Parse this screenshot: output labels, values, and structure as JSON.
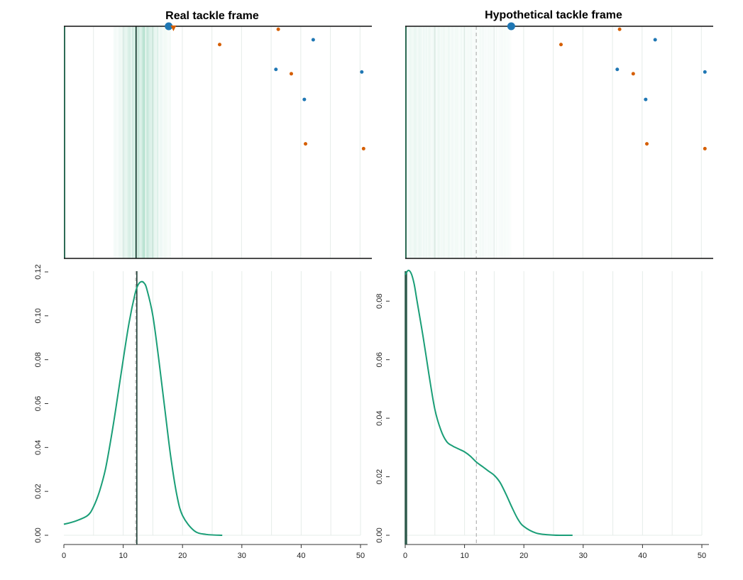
{
  "chart_data": [
    {
      "type": "scatter",
      "title": "Real tackle frame",
      "xlim": [
        0,
        52
      ],
      "ylim": [
        0,
        53.3
      ],
      "grid": true,
      "line_marker_x": 12.2,
      "band_range": [
        8.5,
        18
      ],
      "band_core": [
        11,
        15
      ],
      "ball_carrier": {
        "x": 17.7,
        "y": 53.3,
        "color": "#1f77b4"
      },
      "tackler": {
        "x": 18.5,
        "y": 53.0,
        "color": "#d55e00"
      },
      "series": [
        {
          "name": "",
          "color": "#1f77b4",
          "points": [
            [
              42.1,
              50.2
            ],
            [
              35.8,
              43.4
            ],
            [
              40.6,
              36.5
            ],
            [
              50.3,
              42.8
            ]
          ]
        },
        {
          "name": "",
          "color": "#d55e00",
          "points": [
            [
              36.2,
              52.6
            ],
            [
              26.3,
              49.1
            ],
            [
              38.4,
              42.4
            ],
            [
              40.8,
              26.3
            ],
            [
              50.6,
              25.2
            ]
          ]
        }
      ]
    },
    {
      "type": "scatter",
      "title": "Hypothetical tackle frame",
      "xlim": [
        0,
        52
      ],
      "ylim": [
        0,
        53.3
      ],
      "grid": true,
      "line_marker_x": 12.0,
      "band_range": [
        0,
        18
      ],
      "ball_carrier": {
        "x": 17.9,
        "y": 53.3,
        "color": "#1f77b4"
      },
      "series": [
        {
          "name": "",
          "color": "#1f77b4",
          "points": [
            [
              42.2,
              50.2
            ],
            [
              35.8,
              43.4
            ],
            [
              40.6,
              36.5
            ],
            [
              50.6,
              42.8
            ]
          ]
        },
        {
          "name": "",
          "color": "#d55e00",
          "points": [
            [
              36.2,
              52.6
            ],
            [
              26.3,
              49.1
            ],
            [
              38.5,
              42.4
            ],
            [
              40.8,
              26.3
            ],
            [
              50.6,
              25.2
            ]
          ]
        }
      ]
    },
    {
      "type": "line",
      "title": "",
      "xlabel": "",
      "ylabel": "",
      "xlim": [
        0,
        50
      ],
      "ylim": [
        0,
        0.12
      ],
      "xticks": [
        0,
        10,
        20,
        30,
        40,
        50
      ],
      "yticks": [
        0.0,
        0.02,
        0.04,
        0.06,
        0.08,
        0.1,
        0.12
      ],
      "ytick_labels": [
        "0.00",
        "0.02",
        "0.04",
        "0.06",
        "0.08",
        "0.10",
        "0.12"
      ],
      "xtick_labels": [
        "0",
        "10",
        "20",
        "30",
        "40",
        "50"
      ],
      "vline_solid_x": 12.3,
      "vline_dashed_x": 12.1,
      "series": [
        {
          "name": "",
          "color": "#1a9e77",
          "x": [
            0,
            2,
            4,
            5,
            6,
            7,
            8,
            9,
            10,
            11,
            12,
            12.5,
            13,
            13.5,
            14,
            15,
            16,
            17,
            18,
            19,
            20,
            22,
            24,
            26.7
          ],
          "y": [
            0.005,
            0.0065,
            0.009,
            0.013,
            0.02,
            0.03,
            0.045,
            0.062,
            0.08,
            0.097,
            0.11,
            0.114,
            0.1155,
            0.115,
            0.112,
            0.1,
            0.08,
            0.058,
            0.036,
            0.019,
            0.009,
            0.002,
            0.0004,
            0
          ]
        }
      ]
    },
    {
      "type": "line",
      "title": "",
      "xlabel": "",
      "ylabel": "",
      "xlim": [
        0,
        50
      ],
      "ylim": [
        0,
        0.09
      ],
      "xticks": [
        0,
        10,
        20,
        30,
        40,
        50
      ],
      "yticks": [
        0.0,
        0.02,
        0.04,
        0.06,
        0.08
      ],
      "ytick_labels": [
        "0.00",
        "0.02",
        "0.04",
        "0.06",
        "0.08"
      ],
      "xtick_labels": [
        "0",
        "10",
        "20",
        "30",
        "40",
        "50"
      ],
      "vline_solid_x": 0,
      "vline_dashed_x": 12.0,
      "series": [
        {
          "name": "",
          "color": "#1a9e77",
          "x": [
            0,
            0.5,
            1,
            1.5,
            2,
            3,
            4,
            5,
            6,
            7,
            8,
            9,
            10,
            11,
            12,
            13,
            14,
            15,
            16,
            17,
            18,
            19,
            20,
            22,
            24,
            26,
            28.2
          ],
          "y": [
            0.089,
            0.0905,
            0.0895,
            0.086,
            0.08,
            0.068,
            0.055,
            0.043,
            0.036,
            0.032,
            0.0305,
            0.0295,
            0.0285,
            0.027,
            0.025,
            0.0235,
            0.022,
            0.0205,
            0.018,
            0.014,
            0.0095,
            0.0055,
            0.003,
            0.0008,
            0.0002,
            0,
            0
          ]
        }
      ]
    }
  ]
}
